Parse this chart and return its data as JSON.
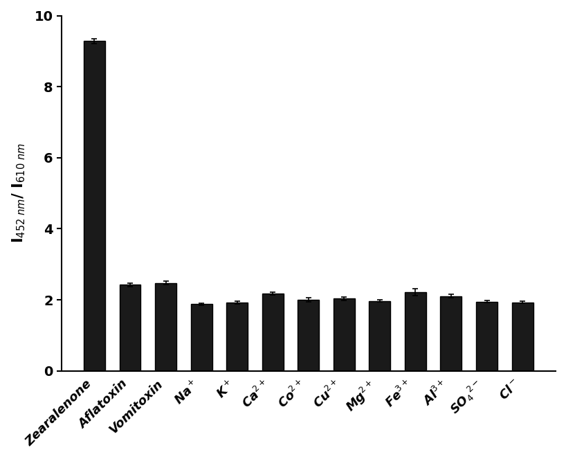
{
  "categories": [
    "Zearalenone",
    "Aflatoxin",
    "Vomitoxin",
    "Na$^+$",
    "K$^+$",
    "Ca$^{2+}$",
    "Co$^{2+}$",
    "Cu$^{2+}$",
    "Mg$^{2+}$",
    "Fe$^{3+}$",
    "Al$^{3+}$",
    "SO$_4$$^{2-}$",
    "Cl$^-$"
  ],
  "values": [
    9.28,
    2.42,
    2.47,
    1.88,
    1.93,
    2.18,
    2.0,
    2.03,
    1.97,
    2.22,
    2.1,
    1.95,
    1.93
  ],
  "errors": [
    0.07,
    0.04,
    0.05,
    0.03,
    0.04,
    0.04,
    0.05,
    0.04,
    0.03,
    0.1,
    0.05,
    0.03,
    0.03
  ],
  "bar_color": "#1a1a1a",
  "edge_color": "#000000",
  "ylabel": "I$_{452\\ nm}$/ I$_{610\\ nm}$",
  "ylim": [
    0,
    10
  ],
  "yticks": [
    0,
    2,
    4,
    6,
    8,
    10
  ],
  "background_color": "#ffffff",
  "figsize": [
    8.18,
    6.63
  ],
  "dpi": 100
}
